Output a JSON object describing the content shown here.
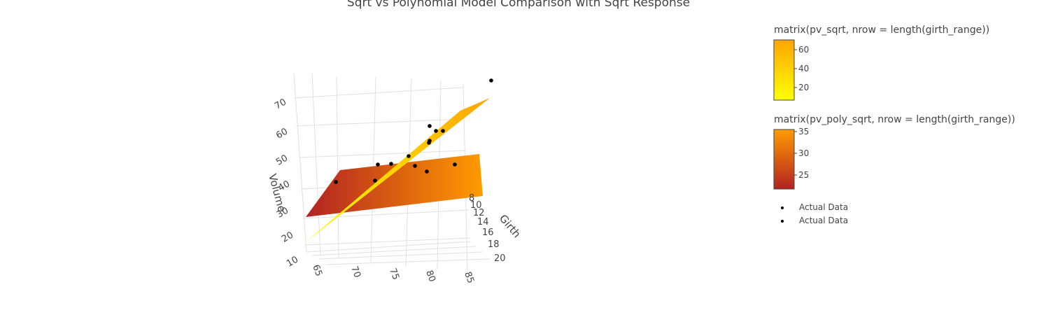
{
  "chart_data": {
    "type": "3d-surface-scatter",
    "title": "Sqrt vs Polynomial Model Comparison with Sqrt Response",
    "axes": {
      "x": {
        "label": "Girth",
        "ticks": [
          "8",
          "10",
          "12",
          "14",
          "16",
          "18",
          "20"
        ]
      },
      "y": {
        "label": "",
        "ticks": [
          "65",
          "70",
          "75",
          "80",
          "85"
        ]
      },
      "z": {
        "label": "Volume",
        "ticks": [
          "10",
          "20",
          "30",
          "40",
          "50",
          "60",
          "70"
        ]
      }
    },
    "surfaces": [
      {
        "name": "matrix(pv_sqrt, nrow = length(girth_range))",
        "colorscale": [
          "#FFFF00",
          "#FFA500"
        ],
        "colorbar_ticks": [
          "20",
          "40",
          "60"
        ]
      },
      {
        "name": "matrix(pv_poly_sqrt, nrow = length(girth_range))",
        "colorscale": [
          "#B22222",
          "#FF8C00"
        ],
        "colorbar_ticks": [
          "25",
          "30",
          "35"
        ]
      }
    ],
    "legend": {
      "entries": [
        "Actual Data",
        "Actual Data"
      ],
      "marker_color": "#000000"
    },
    "colors": {
      "grid": "#e0e0e0",
      "points": "#000000"
    }
  }
}
